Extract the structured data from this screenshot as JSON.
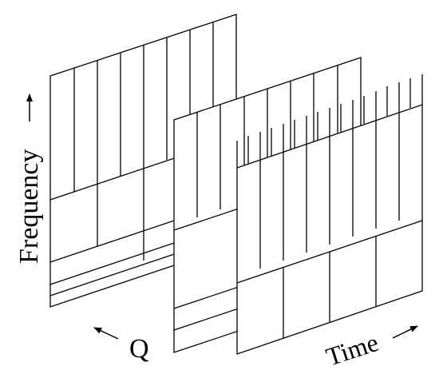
{
  "labels": {
    "frequency": "Frequency",
    "q": "Q",
    "time": "Time"
  },
  "colors": {
    "stroke": "#000000",
    "background": "#ffffff"
  },
  "icons": {
    "frequency_arrow": "arrow-up-icon",
    "q_arrow": "arrow-up-left-icon",
    "time_arrow": "arrow-up-right-icon"
  }
}
